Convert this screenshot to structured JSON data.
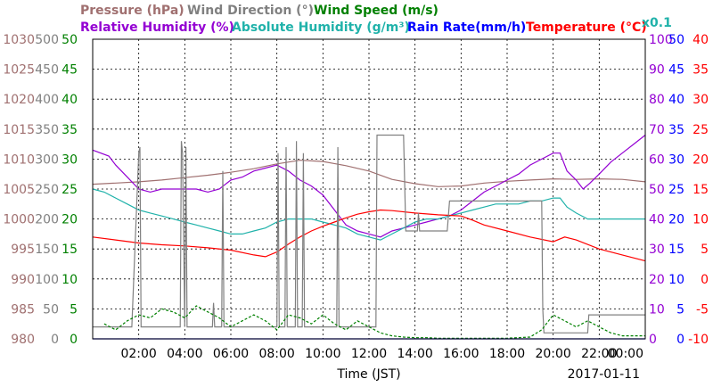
{
  "header": {
    "row1": [
      {
        "text": "Pressure (hPa)",
        "color": "#a07070"
      },
      {
        "text": "Wind Direction (°)",
        "color": "#808080"
      },
      {
        "text": "Wind Speed (m/s)",
        "color": "#008000"
      }
    ],
    "row2": [
      {
        "text": "Relative Humidity (%)",
        "color": "#9400d3"
      },
      {
        "text": "Absolute Humidity (g/m³)",
        "color": "#20b2aa"
      },
      {
        "text": "Rain Rate(mm/h)",
        "color": "#0000ff"
      },
      {
        "text": "Temperature (°C)",
        "color": "#ff0000"
      }
    ],
    "scale_note": {
      "text": "x0.1",
      "color": "#20b2aa"
    }
  },
  "footer": {
    "xlabel": "Time (JST)",
    "date": "2017-01-11"
  },
  "chart_data": {
    "type": "line",
    "x_unit": "hour (JST)",
    "xlim": [
      0,
      24
    ],
    "x_ticks": [
      2,
      4,
      6,
      8,
      10,
      12,
      14,
      16,
      18,
      20,
      22,
      24
    ],
    "x_tick_labels": [
      "02:00",
      "04:00",
      "06:00",
      "08:00",
      "10:00",
      "12:00",
      "14:00",
      "16:00",
      "18:00",
      "20:00",
      "22:00",
      "00:00"
    ],
    "grid": true,
    "axes": {
      "pressure": {
        "range": [
          980,
          1030
        ],
        "ticks": [
          980,
          985,
          990,
          995,
          1000,
          1005,
          1010,
          1015,
          1020,
          1025,
          1030
        ],
        "color": "#a07070",
        "side": "left"
      },
      "wind_direction": {
        "range": [
          0,
          500
        ],
        "ticks": [
          0,
          50,
          100,
          150,
          200,
          250,
          300,
          350,
          400,
          450,
          500
        ],
        "color": "#808080",
        "side": "left"
      },
      "wind_speed": {
        "range": [
          0,
          50
        ],
        "ticks": [
          0,
          5,
          10,
          15,
          20,
          25,
          30,
          35,
          40,
          45,
          50
        ],
        "color": "#008000",
        "side": "left"
      },
      "humidity": {
        "range": [
          0,
          100
        ],
        "ticks": [
          0,
          10,
          20,
          30,
          40,
          50,
          60,
          70,
          80,
          90,
          100
        ],
        "color": "#9400d3",
        "side": "right"
      },
      "rain_rate": {
        "range": [
          0,
          50
        ],
        "ticks": [
          0,
          5,
          10,
          15,
          20,
          25,
          30,
          35,
          40,
          45,
          50
        ],
        "color": "#0000ff",
        "side": "right"
      },
      "temperature": {
        "range": [
          -10,
          40
        ],
        "ticks": [
          -10,
          -5,
          0,
          5,
          10,
          15,
          20,
          25,
          30,
          35,
          40
        ],
        "color": "#ff0000",
        "side": "right"
      }
    },
    "series": [
      {
        "name": "Pressure (hPa)",
        "axis": "pressure",
        "color": "#a07070",
        "x": [
          0.0,
          1.0,
          2.0,
          3.0,
          4.0,
          5.0,
          6.0,
          7.0,
          8.0,
          9.0,
          10.0,
          11.0,
          12.0,
          13.0,
          14.0,
          15.0,
          16.0,
          17.0,
          18.0,
          19.0,
          20.0,
          21.0,
          22.0,
          23.0,
          24.0
        ],
        "y": [
          1005.8,
          1006.0,
          1006.2,
          1006.5,
          1006.9,
          1007.3,
          1007.8,
          1008.4,
          1009.2,
          1009.8,
          1009.6,
          1008.9,
          1008.0,
          1006.6,
          1005.9,
          1005.4,
          1005.5,
          1006.0,
          1006.3,
          1006.5,
          1006.7,
          1006.6,
          1006.7,
          1006.6,
          1006.2
        ]
      },
      {
        "name": "Relative Humidity (%)",
        "axis": "humidity",
        "color": "#9400d3",
        "x": [
          0.0,
          0.7,
          1.0,
          1.5,
          2.0,
          2.5,
          3.0,
          3.5,
          4.0,
          4.5,
          5.0,
          5.5,
          6.0,
          6.5,
          7.0,
          7.5,
          8.0,
          8.5,
          9.0,
          9.5,
          10.0,
          10.5,
          11.0,
          11.5,
          12.0,
          12.5,
          13.0,
          13.5,
          14.0,
          14.5,
          15.0,
          15.5,
          16.0,
          16.5,
          17.0,
          17.5,
          18.0,
          18.5,
          19.0,
          19.5,
          20.0,
          20.3,
          20.6,
          21.0,
          21.3,
          21.6,
          22.0,
          22.5,
          23.0,
          23.5,
          24.0
        ],
        "y": [
          63,
          61,
          58,
          54,
          50,
          49,
          50,
          50,
          50,
          50,
          49,
          50,
          53,
          54,
          56,
          57,
          58,
          56,
          53,
          51,
          48,
          43,
          38,
          36,
          35,
          34,
          36,
          37,
          38,
          39,
          40,
          41,
          43,
          46,
          49,
          51,
          53,
          55,
          58,
          60,
          62,
          62,
          56,
          53,
          50,
          52,
          55,
          59,
          62,
          65,
          68
        ]
      },
      {
        "name": "Absolute Humidity (g/m³)",
        "axis": "humidity",
        "color": "#20b2aa",
        "x": [
          0.0,
          0.5,
          1.0,
          1.5,
          2.0,
          2.5,
          3.0,
          3.5,
          4.0,
          4.5,
          5.0,
          5.5,
          6.0,
          6.5,
          7.0,
          7.5,
          8.0,
          8.5,
          9.0,
          9.5,
          10.0,
          10.5,
          11.0,
          11.5,
          12.0,
          12.5,
          13.0,
          13.5,
          14.0,
          14.5,
          15.0,
          15.5,
          16.0,
          16.5,
          17.0,
          17.5,
          18.0,
          18.5,
          19.0,
          19.5,
          20.0,
          20.3,
          20.6,
          21.0,
          21.5,
          22.0,
          22.5,
          23.0,
          23.5,
          24.0
        ],
        "y": [
          50,
          49,
          47,
          45,
          43,
          42,
          41,
          40,
          39,
          38,
          37,
          36,
          35,
          35,
          36,
          37,
          39,
          40,
          40,
          40,
          39,
          38,
          37,
          35,
          34,
          33,
          35,
          37,
          39,
          40,
          40,
          41,
          42,
          43,
          44,
          45,
          45,
          45,
          46,
          46,
          47,
          47,
          44,
          42,
          40,
          40,
          40,
          40,
          40,
          40
        ]
      },
      {
        "name": "Temperature (°C)",
        "axis": "temperature",
        "color": "#ff0000",
        "x": [
          0.0,
          1.0,
          2.0,
          3.0,
          4.0,
          5.0,
          6.0,
          7.0,
          7.5,
          8.0,
          8.5,
          9.0,
          9.5,
          10.0,
          10.5,
          11.0,
          11.5,
          12.0,
          12.5,
          13.0,
          14.0,
          15.0,
          16.0,
          16.5,
          17.0,
          18.0,
          19.0,
          20.0,
          20.5,
          21.0,
          22.0,
          23.0,
          24.0
        ],
        "y": [
          7.0,
          6.5,
          6.0,
          5.7,
          5.5,
          5.2,
          4.8,
          4.0,
          3.7,
          4.5,
          5.8,
          7.0,
          8.0,
          8.8,
          9.5,
          10.2,
          10.8,
          11.2,
          11.5,
          11.4,
          11.0,
          10.7,
          10.5,
          9.8,
          9.0,
          8.0,
          7.0,
          6.2,
          7.0,
          6.5,
          5.0,
          4.0,
          3.0
        ]
      },
      {
        "name": "Wind Direction (°)",
        "axis": "wind_direction",
        "color": "#808080",
        "x": [
          0.0,
          1.7,
          2.0,
          2.05,
          2.1,
          3.8,
          3.85,
          3.9,
          4.0,
          4.05,
          4.1,
          5.2,
          5.25,
          5.3,
          5.6,
          5.65,
          5.7,
          8.0,
          8.05,
          8.1,
          8.35,
          8.4,
          8.45,
          8.8,
          8.85,
          8.9,
          9.1,
          9.15,
          9.2,
          10.6,
          10.65,
          10.7,
          12.3,
          12.35,
          12.4,
          12.9,
          13.0,
          13.5,
          13.6,
          14.1,
          14.15,
          14.2,
          15.4,
          15.5,
          16.4,
          16.5,
          18.0,
          19.0,
          19.5,
          19.55,
          19.6,
          19.7,
          20.0,
          21.5,
          21.55,
          22.5,
          24.0
        ],
        "y": [
          20,
          20,
          310,
          320,
          20,
          20,
          330,
          310,
          20,
          320,
          20,
          20,
          60,
          20,
          20,
          280,
          20,
          20,
          310,
          20,
          20,
          320,
          20,
          20,
          330,
          20,
          20,
          310,
          20,
          20,
          320,
          20,
          20,
          340,
          340,
          340,
          340,
          340,
          180,
          180,
          210,
          180,
          180,
          230,
          230,
          230,
          230,
          230,
          230,
          50,
          10,
          10,
          10,
          10,
          40,
          40,
          40
        ]
      },
      {
        "name": "Wind Speed (m/s)",
        "axis": "wind_speed",
        "color": "#008000",
        "x": [
          0.5,
          1.0,
          1.5,
          2.0,
          2.5,
          3.0,
          3.5,
          4.0,
          4.5,
          5.0,
          5.5,
          6.0,
          6.5,
          7.0,
          7.5,
          8.0,
          8.5,
          9.0,
          9.5,
          10.0,
          10.5,
          11.0,
          11.5,
          12.0,
          12.5,
          13.0,
          13.5,
          14.0,
          14.5,
          15.0,
          16.0,
          17.0,
          18.0,
          19.0,
          19.5,
          20.0,
          20.5,
          21.0,
          21.5,
          22.0,
          22.5,
          23.0,
          24.0
        ],
        "y": [
          2.5,
          1.5,
          3.0,
          4.0,
          3.5,
          5.0,
          4.5,
          3.5,
          5.5,
          4.5,
          3.5,
          2.0,
          3.0,
          4.0,
          3.0,
          1.5,
          4.0,
          3.5,
          2.5,
          4.0,
          2.5,
          1.5,
          3.0,
          2.0,
          1.0,
          0.5,
          0.3,
          0.2,
          0.2,
          0.1,
          0.1,
          0.1,
          0.1,
          0.3,
          1.5,
          4.0,
          3.0,
          2.0,
          3.0,
          2.0,
          1.0,
          0.5,
          0.5
        ]
      },
      {
        "name": "Rain Rate(mm/h)",
        "axis": "rain_rate",
        "color": "#0000ff",
        "x": [
          0,
          24
        ],
        "y": [
          0,
          0
        ]
      }
    ]
  }
}
